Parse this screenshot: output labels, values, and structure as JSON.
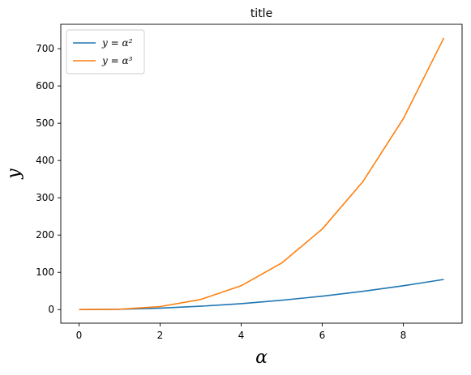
{
  "chart_data": {
    "type": "line",
    "title": "title",
    "xlabel": "α",
    "ylabel": "y",
    "x": [
      0,
      1,
      2,
      3,
      4,
      5,
      6,
      7,
      8,
      9
    ],
    "xlim": [
      -0.45,
      9.45
    ],
    "ylim": [
      -36.45,
      765.45
    ],
    "xticks": [
      0,
      2,
      4,
      6,
      8
    ],
    "yticks": [
      0,
      100,
      200,
      300,
      400,
      500,
      600,
      700
    ],
    "grid": false,
    "legend_position": "top-left",
    "series": [
      {
        "name": "y = α²",
        "color": "#1f77b4",
        "values": [
          0,
          1,
          4,
          9,
          16,
          25,
          36,
          49,
          64,
          81
        ]
      },
      {
        "name": "y = α³",
        "color": "#ff7f0e",
        "values": [
          0,
          1,
          8,
          27,
          64,
          125,
          216,
          343,
          512,
          729
        ]
      }
    ]
  }
}
